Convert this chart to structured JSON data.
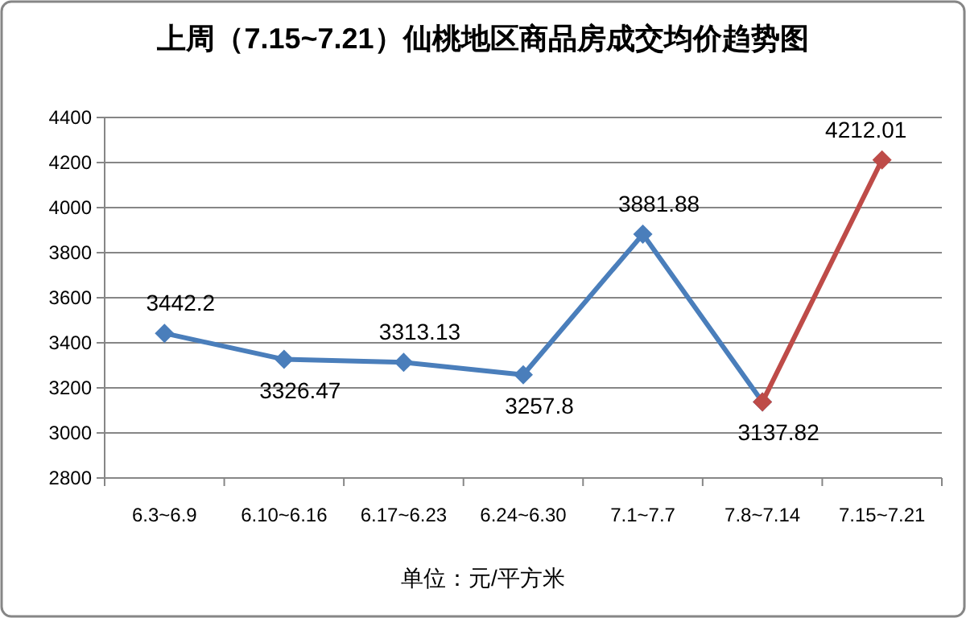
{
  "chart_data": {
    "type": "line",
    "title": "上周（7.15~7.21）仙桃地区商品房成交均价趋势图",
    "xlabel": "单位：元/平方米",
    "categories": [
      "6.3~6.9",
      "6.10~6.16",
      "6.17~6.23",
      "6.24~6.30",
      "7.1~7.7",
      "7.8~7.14",
      "7.15~7.21"
    ],
    "series": [
      {
        "color": "#4a7ebb",
        "values": [
          3442.2,
          3326.47,
          3313.13,
          3257.8,
          3881.88,
          3137.82,
          null
        ],
        "value_labels": [
          "3442.2",
          "3326.47",
          "3313.13",
          "3257.8",
          "3881.88",
          "3137.82",
          null
        ]
      },
      {
        "color": "#be4b48",
        "values": [
          null,
          null,
          null,
          null,
          null,
          3137.82,
          4212.01
        ],
        "value_labels": [
          null,
          null,
          null,
          null,
          null,
          null,
          "4212.01"
        ]
      }
    ],
    "ylim": [
      2800,
      4400
    ],
    "yticks": [
      2800,
      3000,
      3200,
      3400,
      3600,
      3800,
      4000,
      4200,
      4400
    ],
    "grid": "y",
    "marker": "diamond"
  }
}
